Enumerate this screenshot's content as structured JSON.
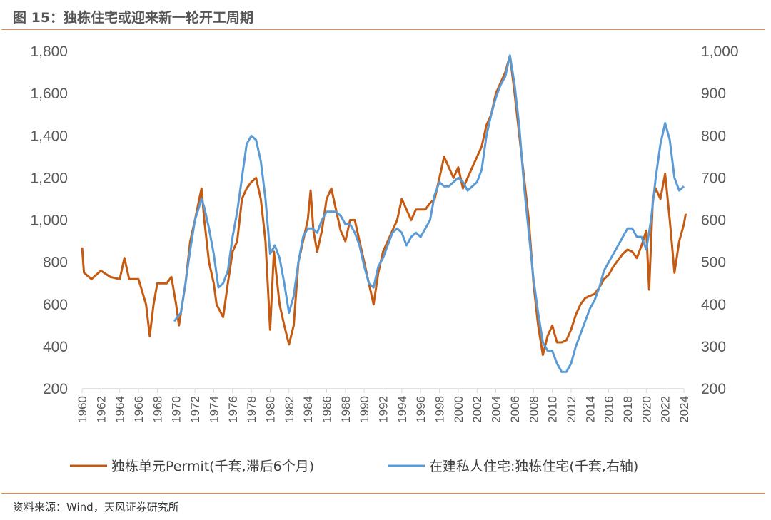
{
  "title": "图 15：独栋住宅或迎来新一轮开工周期",
  "source": "资料来源：Wind，天风证券研究所",
  "chart_data": {
    "type": "line",
    "title": "图 15：独栋住宅或迎来新一轮开工周期",
    "xlim": [
      1960,
      2024
    ],
    "x_ticks": [
      "1960",
      "1962",
      "1964",
      "1966",
      "1968",
      "1970",
      "1972",
      "1974",
      "1976",
      "1978",
      "1980",
      "1982",
      "1984",
      "1986",
      "1988",
      "1990",
      "1992",
      "1994",
      "1996",
      "1998",
      "2000",
      "2002",
      "2004",
      "2006",
      "2008",
      "2010",
      "2012",
      "2014",
      "2016",
      "2018",
      "2020",
      "2022",
      "2024"
    ],
    "ylim_left": [
      200,
      1800
    ],
    "y_ticks_left": [
      "200",
      "400",
      "600",
      "800",
      "1,000",
      "1,200",
      "1,400",
      "1,600",
      "1,800"
    ],
    "ylim_right": [
      200,
      1000
    ],
    "y_ticks_right": [
      "200",
      "300",
      "400",
      "500",
      "600",
      "700",
      "800",
      "900",
      "1,000"
    ],
    "grid": false,
    "legend_position": "bottom",
    "series": [
      {
        "name": "独栋单元Permit(千套,滞后6个月)",
        "axis": "left",
        "color": "#c55a11",
        "x": [
          1960,
          1960.2,
          1961,
          1962,
          1963,
          1964,
          1964.5,
          1965,
          1966,
          1966.8,
          1967.2,
          1967.6,
          1968,
          1969,
          1969.5,
          1970,
          1970.3,
          1971,
          1971.5,
          1972,
          1972.7,
          1973,
          1973.5,
          1974,
          1974.3,
          1975,
          1975.5,
          1976,
          1976.5,
          1977,
          1977.5,
          1978,
          1978.5,
          1979,
          1979.5,
          1980,
          1980.4,
          1981,
          1981.5,
          1982,
          1982.5,
          1983,
          1983.5,
          1984,
          1984.3,
          1984.6,
          1985,
          1985.5,
          1986,
          1986.5,
          1987,
          1987.5,
          1988,
          1988.5,
          1989,
          1989.5,
          1990,
          1990.5,
          1991,
          1991.5,
          1992,
          1992.5,
          1993,
          1993.5,
          1994,
          1994.5,
          1995,
          1995.5,
          1996,
          1996.5,
          1997,
          1997.5,
          1998,
          1998.5,
          1999,
          1999.5,
          2000,
          2000.5,
          2001,
          2001.5,
          2002,
          2002.5,
          2003,
          2003.5,
          2004,
          2004.5,
          2005,
          2005.5,
          2006,
          2006.5,
          2007,
          2007.5,
          2008,
          2008.5,
          2009,
          2009.5,
          2010,
          2010.5,
          2011,
          2011.5,
          2012,
          2012.5,
          2013,
          2013.5,
          2014,
          2014.5,
          2015,
          2015.5,
          2016,
          2016.5,
          2017,
          2017.5,
          2018,
          2018.5,
          2019,
          2019.5,
          2020,
          2020.3,
          2020.7,
          2021,
          2021.5,
          2022,
          2022.5,
          2023,
          2023.5,
          2024,
          2024.2
        ],
        "values": [
          870,
          750,
          720,
          760,
          730,
          720,
          820,
          720,
          720,
          600,
          450,
          600,
          700,
          700,
          730,
          600,
          500,
          700,
          900,
          1000,
          1150,
          1000,
          800,
          700,
          600,
          540,
          700,
          850,
          900,
          1100,
          1150,
          1180,
          1200,
          1100,
          900,
          480,
          850,
          600,
          500,
          410,
          500,
          800,
          900,
          1000,
          1140,
          950,
          850,
          950,
          1100,
          1150,
          1050,
          950,
          900,
          1000,
          1000,
          900,
          800,
          700,
          600,
          750,
          850,
          900,
          950,
          1000,
          1100,
          1050,
          1000,
          1050,
          1050,
          1050,
          1080,
          1100,
          1200,
          1300,
          1250,
          1200,
          1250,
          1150,
          1200,
          1250,
          1300,
          1350,
          1450,
          1500,
          1600,
          1650,
          1700,
          1780,
          1600,
          1400,
          1200,
          1000,
          700,
          500,
          360,
          450,
          500,
          420,
          420,
          430,
          480,
          550,
          600,
          630,
          640,
          650,
          680,
          720,
          740,
          780,
          810,
          840,
          860,
          850,
          820,
          880,
          950,
          670,
          1100,
          1150,
          1100,
          1220,
          1000,
          750,
          900,
          980,
          1030
        ]
      },
      {
        "name": "在建私人住宅:独栋住宅(千套,右轴)",
        "axis": "right",
        "color": "#5b9bd5",
        "x": [
          1969.8,
          1970.5,
          1971,
          1971.5,
          1972,
          1972.7,
          1973,
          1973.5,
          1974,
          1974.5,
          1975,
          1975.5,
          1976,
          1976.5,
          1977,
          1977.5,
          1978,
          1978.5,
          1979,
          1979.5,
          1980,
          1980.5,
          1981,
          1981.5,
          1982,
          1982.5,
          1983,
          1983.5,
          1984,
          1984.5,
          1985,
          1985.5,
          1986,
          1986.5,
          1987,
          1987.5,
          1988,
          1988.5,
          1989,
          1989.5,
          1990,
          1990.5,
          1991,
          1991.5,
          1992,
          1992.5,
          1993,
          1993.5,
          1994,
          1994.5,
          1995,
          1995.5,
          1996,
          1996.5,
          1997,
          1997.5,
          1998,
          1998.5,
          1999,
          1999.5,
          2000,
          2000.5,
          2001,
          2001.5,
          2002,
          2002.5,
          2003,
          2003.5,
          2004,
          2004.5,
          2005,
          2005.5,
          2006,
          2006.5,
          2007,
          2007.5,
          2008,
          2008.5,
          2009,
          2009.5,
          2010,
          2010.5,
          2011,
          2011.5,
          2012,
          2012.5,
          2013,
          2013.5,
          2014,
          2014.5,
          2015,
          2015.5,
          2016,
          2016.5,
          2017,
          2017.5,
          2018,
          2018.5,
          2019,
          2019.5,
          2020,
          2020.5,
          2021,
          2021.5,
          2022,
          2022.5,
          2023,
          2023.5,
          2024
        ],
        "values": [
          360,
          380,
          450,
          530,
          600,
          650,
          630,
          580,
          520,
          440,
          450,
          480,
          560,
          620,
          700,
          780,
          800,
          790,
          740,
          650,
          520,
          540,
          510,
          450,
          380,
          420,
          500,
          560,
          580,
          580,
          570,
          600,
          620,
          620,
          620,
          610,
          590,
          590,
          570,
          540,
          490,
          450,
          440,
          490,
          510,
          540,
          570,
          580,
          570,
          540,
          560,
          570,
          560,
          580,
          600,
          660,
          690,
          680,
          680,
          690,
          700,
          690,
          670,
          680,
          690,
          720,
          800,
          850,
          890,
          920,
          940,
          990,
          920,
          820,
          680,
          570,
          460,
          380,
          310,
          290,
          290,
          260,
          240,
          240,
          260,
          300,
          330,
          360,
          390,
          410,
          440,
          480,
          500,
          520,
          540,
          560,
          580,
          580,
          560,
          560,
          530,
          600,
          700,
          780,
          830,
          790,
          700,
          670,
          680
        ]
      }
    ]
  }
}
